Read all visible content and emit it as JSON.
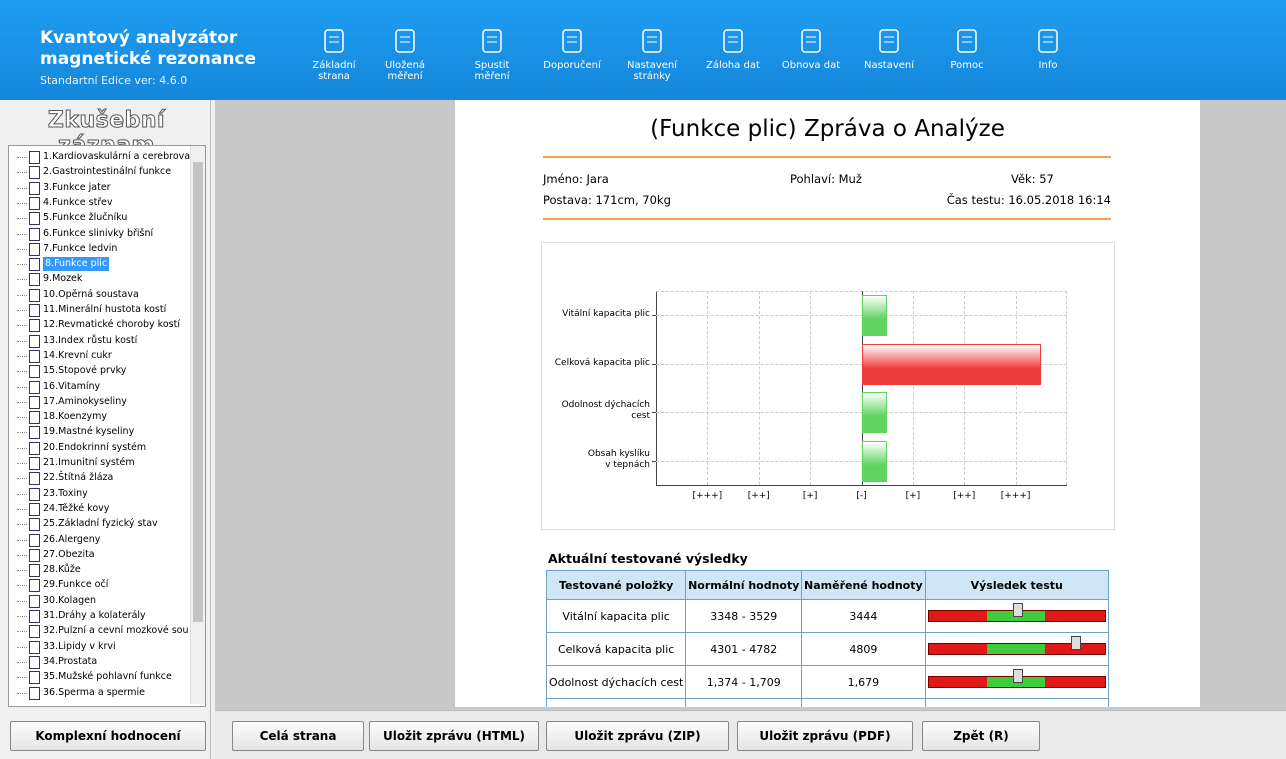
{
  "header": {
    "line1": "Kvantový analyzátor",
    "line2": "magnetické rezonance",
    "version": "Standartní Edice ver: 4.6.0"
  },
  "toolbar": [
    "Základní\nstrana",
    "Uložená\nměření",
    "Spustit\nměření",
    "Doporučení",
    "Nastavení\nstránky",
    "Záloha dat",
    "Obnova dat",
    "Nastavení",
    "Pomoc",
    "Info"
  ],
  "sidebar": {
    "title": "Zkušební záznam",
    "items": [
      "1.Kardiovaskulární a cerebrova",
      "2.Gastrointestinální funkce",
      "3.Funkce jater",
      "4.Funkce střev",
      "5.Funkce žlučníku",
      "6.Funkce slinivky břišní",
      "7.Funkce ledvin",
      "8.Funkce plic",
      "9.Mozek",
      "10.Opěrná soustava",
      "11.Minerální hustota kostí",
      "12.Revmatické choroby kostí",
      "13.Index růstu kostí",
      "14.Krevní cukr",
      "15.Stopové prvky",
      "16.Vitamíny",
      "17.Aminokyseliny",
      "18.Koenzymy",
      "19.Mastné kyseliny",
      "20.Endokrinní systém",
      "21.Imunitní systém",
      "22.Štítná žláza",
      "23.Toxiny",
      "24.Těžké kovy",
      "25.Základní fyzický stav",
      "26.Alergeny",
      "27.Obezita",
      "28.Kůže",
      "29.Funkce očí",
      "30.Kolagen",
      "31.Dráhy a kolaterály",
      "32.Pulzní a cevní mozkové sou",
      "33.Lipidy v krvi",
      "34.Prostata",
      "35.Mužské pohlavní funkce",
      "36.Sperma a spermie"
    ],
    "selected": 7,
    "button": "Komplexní hodnocení"
  },
  "report": {
    "title": "(Funkce plic) Zpráva o Analýze",
    "name": "Jméno: Jara",
    "sex": "Pohlaví: Muž",
    "age": "Věk: 57",
    "body": "Postava: 171cm, 70kg",
    "time": "Čas testu: 16.05.2018 16:14",
    "chart": {
      "type": "bar",
      "orientation": "horizontal",
      "categories": [
        "Vitální kapacita plic",
        "Celková kapacita plic",
        "Odolnost dýchacích\ncest",
        "Obsah kyslíku\nv tepnách"
      ],
      "values": [
        0.5,
        3.5,
        0.5,
        0.5
      ],
      "colors": [
        "#5fd35f",
        "#f03c3c",
        "#5fd35f",
        "#5fd35f"
      ],
      "xlim": [
        -4,
        4
      ],
      "xticks": [
        {
          "value": -3,
          "label": "[+++]"
        },
        {
          "value": -2,
          "label": "[++]"
        },
        {
          "value": -1,
          "label": "[+]"
        },
        {
          "value": 0,
          "label": "[-]"
        },
        {
          "value": 1,
          "label": "[+]"
        },
        {
          "value": 2,
          "label": "[++]"
        },
        {
          "value": 3,
          "label": "[+++]"
        }
      ],
      "grid": true
    },
    "table": {
      "title": "Aktuální testované výsledky",
      "columns": [
        "Testované položky",
        "Normální hodnoty",
        "Naměřené hodnoty",
        "Výsledek testu"
      ],
      "rows": [
        [
          "Vitální kapacita plic",
          "3348 - 3529",
          "3444"
        ],
        [
          "Celková kapacita plic",
          "4301 - 4782",
          "4809"
        ],
        [
          "Odolnost dýchacích cest",
          "1,374 - 1,709",
          "1,679"
        ]
      ]
    }
  },
  "buttons": [
    "Celá strana",
    "Uložit zprávu (HTML)",
    "Uložit zprávu (ZIP)",
    "Uložit zprávu (PDF)",
    "Zpět (R)"
  ]
}
